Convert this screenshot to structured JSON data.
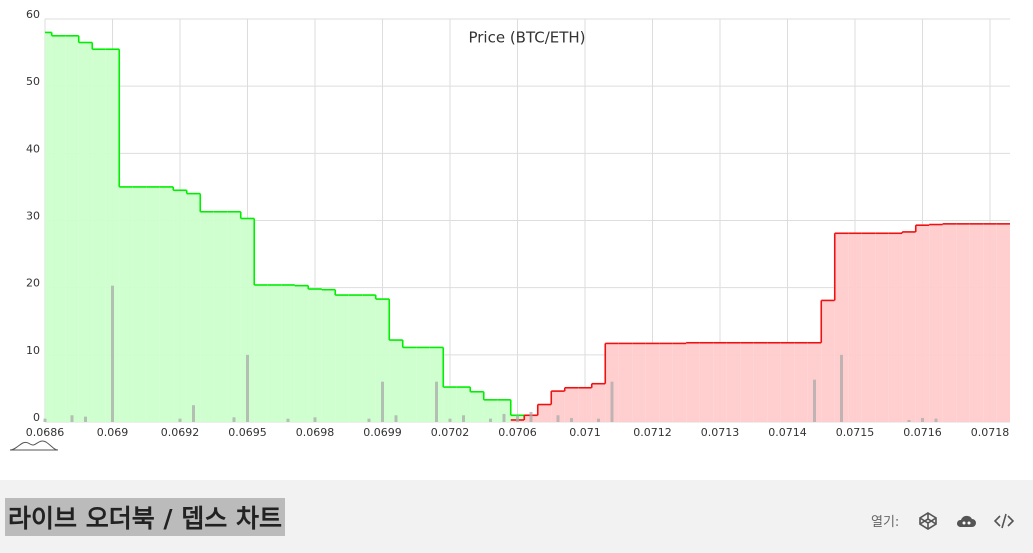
{
  "chart_data": {
    "type": "depth",
    "title": "Price (BTC/ETH)",
    "categories": [
      "0.0686",
      null,
      null,
      null,
      null,
      "0.069",
      null,
      null,
      null,
      null,
      "0.0692",
      null,
      null,
      null,
      null,
      "0.0695",
      null,
      null,
      null,
      null,
      "0.0698",
      null,
      null,
      null,
      null,
      "0.0699",
      null,
      null,
      null,
      null,
      "0.0702",
      null,
      null,
      null,
      null,
      "0.0706",
      null,
      null,
      null,
      null,
      "0.071",
      null,
      null,
      null,
      null,
      "0.0712",
      null,
      null,
      null,
      null,
      "0.0713",
      null,
      null,
      null,
      null,
      "0.0714",
      null,
      null,
      null,
      null,
      "0.0715",
      null,
      null,
      null,
      null,
      "0.0716",
      null,
      null,
      null,
      null,
      "0.0718",
      null
    ],
    "series": [
      {
        "color": "#00ee00",
        "fill": "#ccffcc",
        "values": [
          58,
          57.5,
          57.5,
          56.5,
          55.5,
          55.5,
          35,
          35,
          35,
          35,
          34.5,
          34,
          31.3,
          31.3,
          31.3,
          30.3,
          20.4,
          20.4,
          20.4,
          20.3,
          19.8,
          19.7,
          18.9,
          18.9,
          18.9,
          18.3,
          12.2,
          11.1,
          11.1,
          11.1,
          5.2,
          5.2,
          4.5,
          3.3,
          3.3,
          1,
          1,
          null,
          null,
          null,
          null,
          null,
          null,
          null,
          null,
          null,
          null,
          null,
          null,
          null,
          null,
          null,
          null,
          null,
          null,
          null,
          null,
          null,
          null,
          null,
          null,
          null,
          null,
          null,
          null,
          null,
          null,
          null,
          null,
          null,
          null,
          null
        ]
      },
      {
        "color": "#ee1111",
        "fill": "#ffcccc",
        "values": [
          null,
          null,
          null,
          null,
          null,
          null,
          null,
          null,
          null,
          null,
          null,
          null,
          null,
          null,
          null,
          null,
          null,
          null,
          null,
          null,
          null,
          null,
          null,
          null,
          null,
          null,
          null,
          null,
          null,
          null,
          null,
          null,
          null,
          null,
          null,
          0.3,
          1,
          2.6,
          4.6,
          5.1,
          5.1,
          5.7,
          11.7,
          11.7,
          11.7,
          11.7,
          11.7,
          11.7,
          11.8,
          11.8,
          11.8,
          11.8,
          11.8,
          11.8,
          11.8,
          11.8,
          11.8,
          11.8,
          18.1,
          28.1,
          28.1,
          28.1,
          28.1,
          28.1,
          28.3,
          29.3,
          29.4,
          29.5,
          29.5,
          29.5,
          29.5,
          29.5
        ]
      },
      {
        "color": "#aaaaaa",
        "bars": true,
        "values": [
          0.5,
          null,
          1,
          0.8,
          null,
          20.3,
          null,
          null,
          null,
          null,
          0.5,
          2.5,
          null,
          null,
          0.7,
          10,
          null,
          null,
          0.5,
          null,
          0.7,
          null,
          null,
          null,
          0.5,
          6,
          1,
          null,
          null,
          6,
          0.5,
          1,
          null,
          0.5,
          1.2,
          1,
          1.5,
          null,
          1,
          0.6,
          null,
          0.5,
          6,
          null,
          null,
          null,
          null,
          null,
          null,
          null,
          null,
          null,
          null,
          null,
          null,
          null,
          null,
          6.3,
          null,
          10,
          null,
          null,
          null,
          null,
          0.3,
          0.6,
          0.5,
          null,
          null,
          null,
          null,
          null
        ]
      }
    ],
    "ylim": [
      0,
      60
    ],
    "yticks": [
      0,
      10,
      20,
      30,
      40,
      50,
      60
    ],
    "grid": true
  },
  "footer": {
    "title": "라이브 오더북 / 뎁스 차트",
    "open_label": "열기:"
  }
}
